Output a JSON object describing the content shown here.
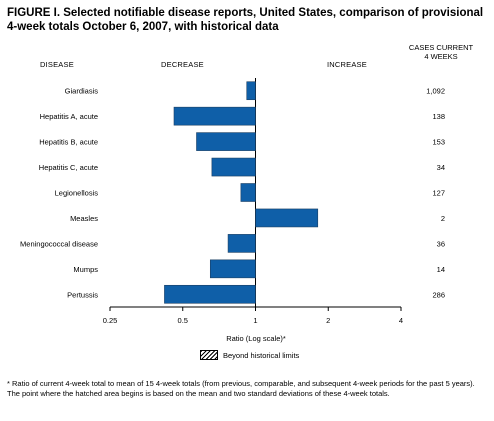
{
  "title": "FIGURE I. Selected notifiable disease reports, United States, comparison of provisional 4-week totals October 6, 2007, with historical data",
  "headers": {
    "disease": "DISEASE",
    "decrease": "DECREASE",
    "increase": "INCREASE",
    "cases_current_line1": "CASES CURRENT",
    "cases_current_line2": "4 WEEKS"
  },
  "legend": {
    "label": "Beyond historical limits"
  },
  "footnote": "* Ratio of current 4-week total to mean of 15 4-week totals (from previous, comparable, and subsequent 4-week periods for the past 5 years). The point where the hatched area begins is based on the mean and two standard deviations of these 4-week totals.",
  "chart_data": {
    "type": "bar",
    "orientation": "horizontal",
    "xscale": "log2",
    "xlabel": "Ratio (Log scale)*",
    "xlim": [
      0.25,
      4
    ],
    "xticks": [
      0.25,
      0.5,
      1,
      2,
      4
    ],
    "xtick_labels": [
      "0.25",
      "0.5",
      "1",
      "2",
      "4"
    ],
    "baseline": 1,
    "bar_color": "#0f5fa8",
    "categories": [
      "Giardiasis",
      "Hepatitis A, acute",
      "Hepatitis B, acute",
      "Hepatitis C, acute",
      "Legionellosis",
      "Measles",
      "Meningococcal disease",
      "Mumps",
      "Pertussis"
    ],
    "values": [
      0.92,
      0.46,
      0.57,
      0.66,
      0.87,
      1.81,
      0.77,
      0.65,
      0.42
    ],
    "cases_current_4_weeks": [
      "1,092",
      "138",
      "153",
      "34",
      "127",
      "2",
      "36",
      "14",
      "286"
    ]
  }
}
